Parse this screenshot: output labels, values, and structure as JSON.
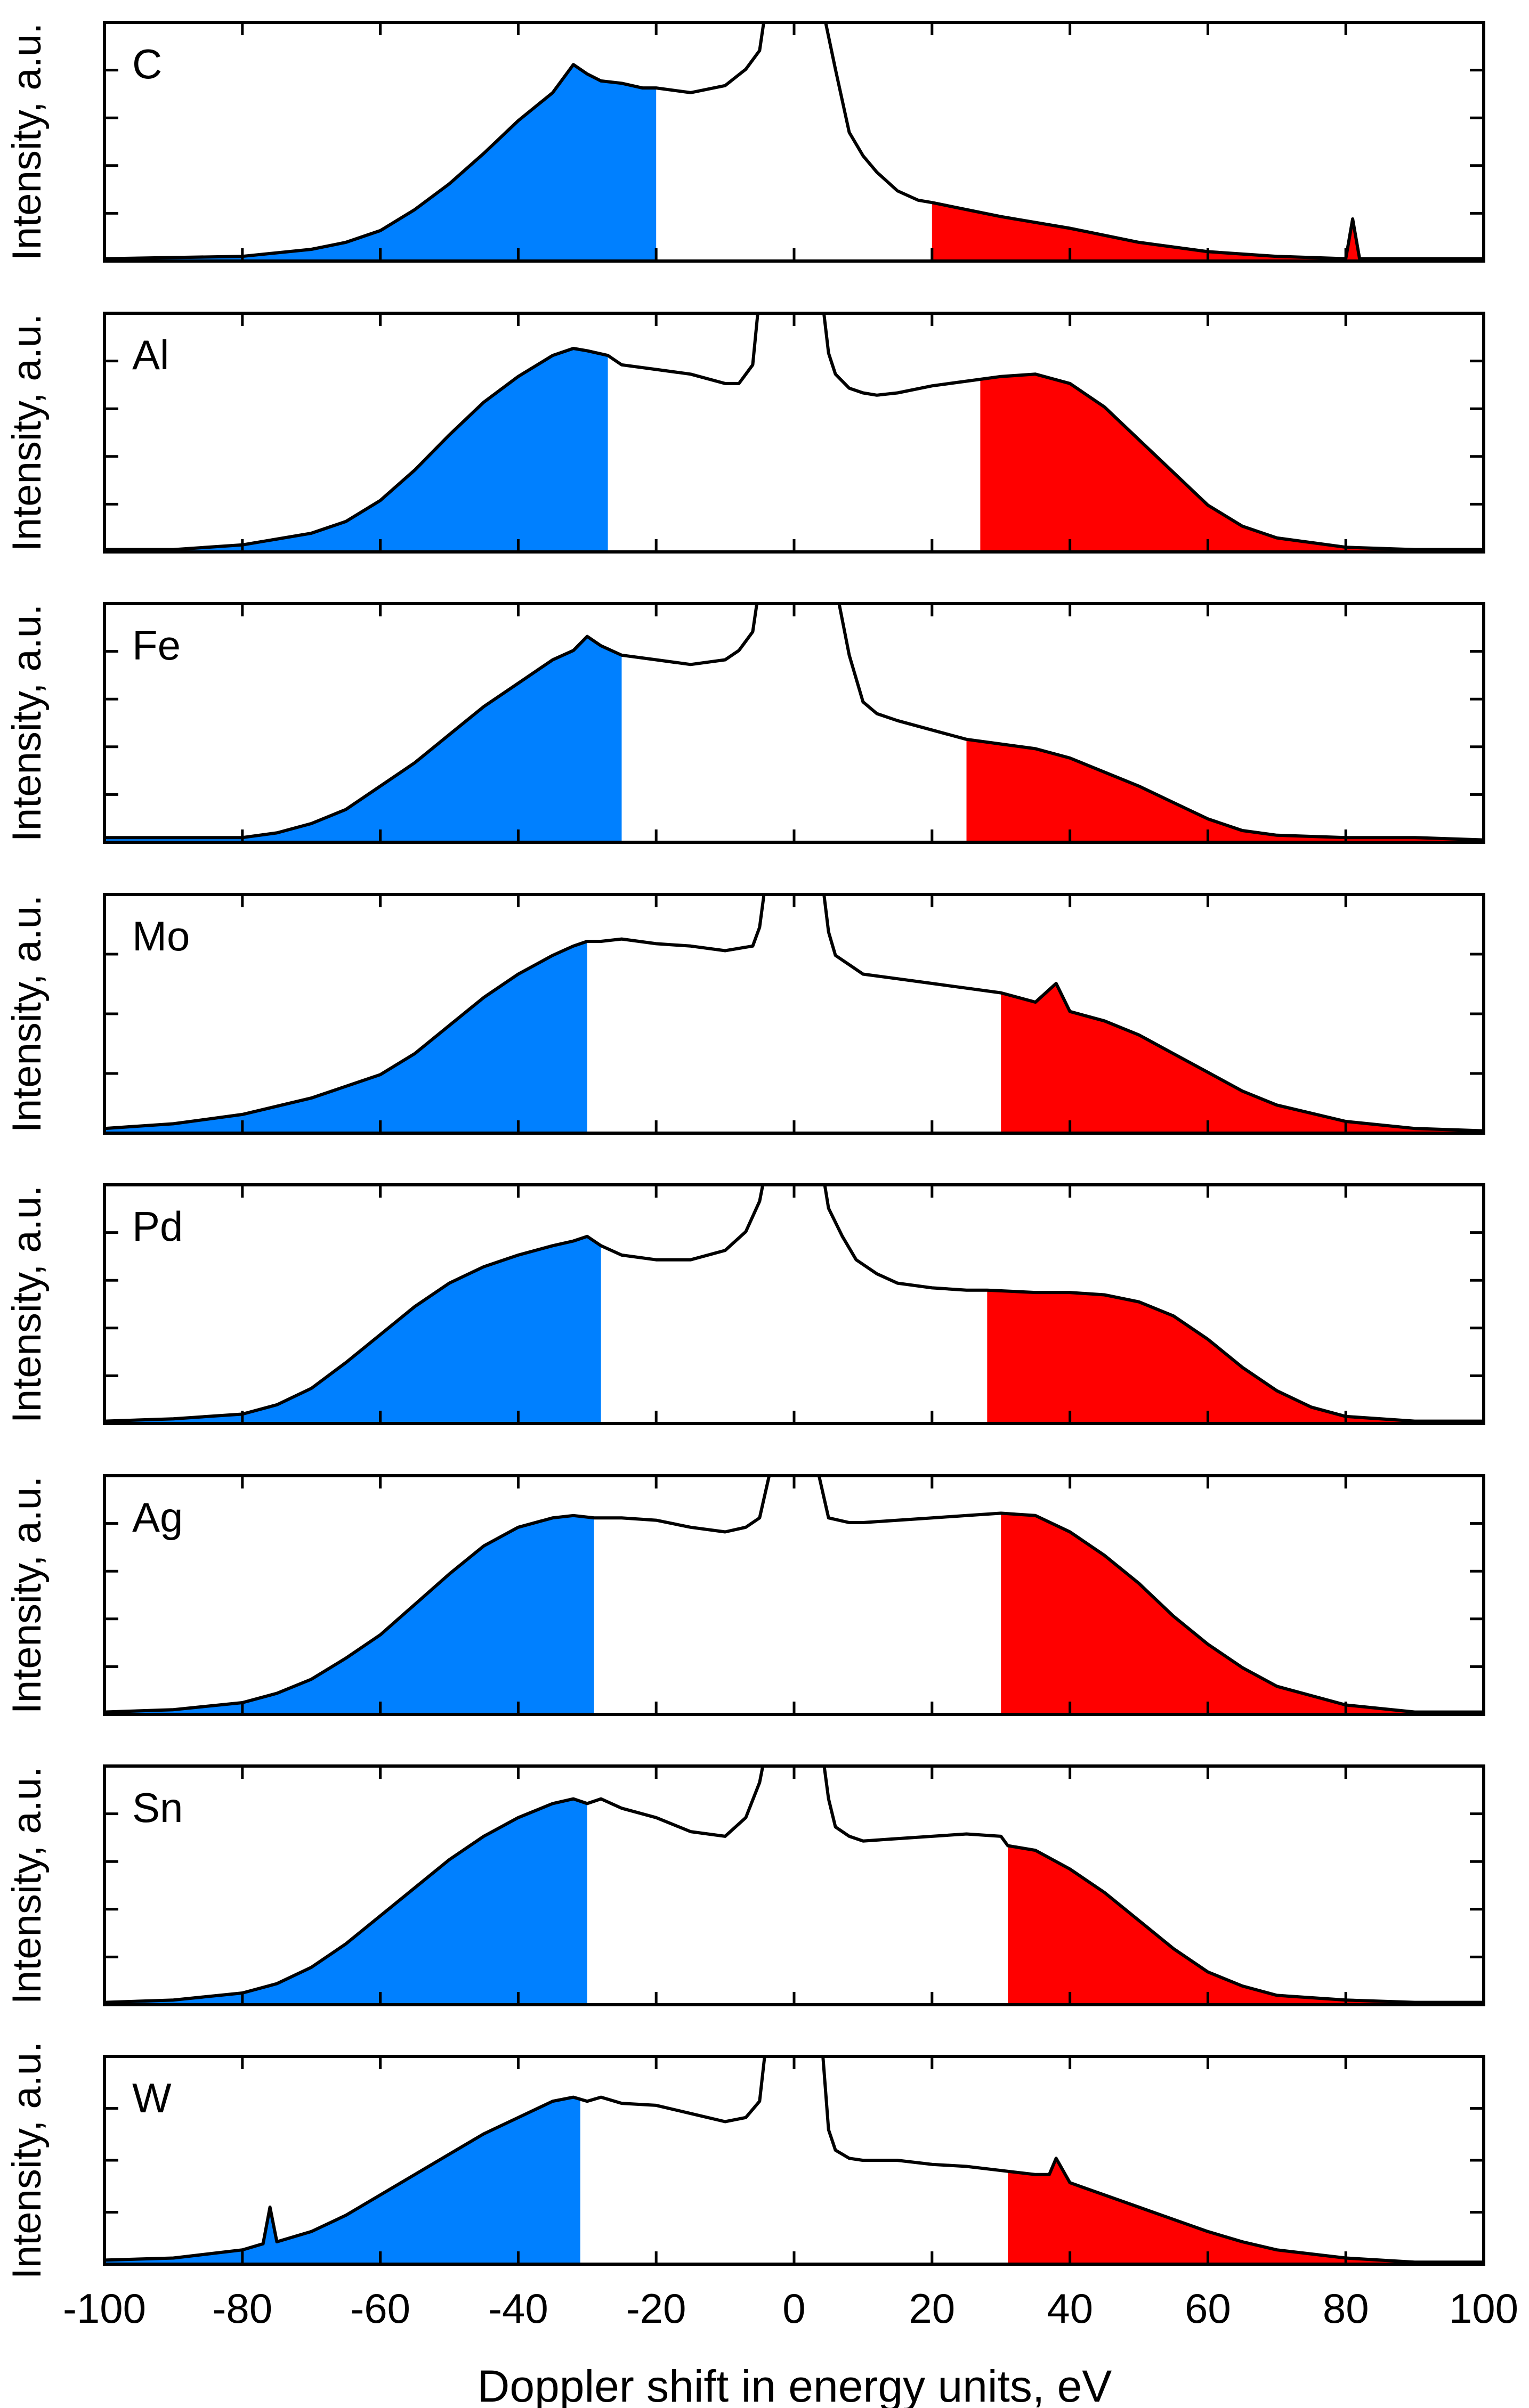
{
  "chart_data": {
    "type": "area",
    "xlabel": "Doppler shift in energy units, eV",
    "ylabel": "Intensity, a.u.",
    "xlim": [
      -100,
      100
    ],
    "xticks": [
      -100,
      -80,
      -60,
      -40,
      -20,
      0,
      20,
      40,
      60,
      80,
      100
    ],
    "xtick_labels": [
      "-100",
      "-80",
      "-60",
      "-40",
      "-20",
      "0",
      "20",
      "40",
      "60",
      "80",
      "100"
    ],
    "colors": {
      "blue_fill": "#0080ff",
      "red_fill": "#ff0000",
      "line": "#000000"
    },
    "panels": [
      {
        "label": "C",
        "blue_cut": -20,
        "red_cut": 20,
        "y_ticks": 4,
        "x": [
          -100,
          -80,
          -70,
          -65,
          -60,
          -55,
          -50,
          -45,
          -40,
          -35,
          -32,
          -30,
          -28,
          -25,
          -22,
          -20,
          -15,
          -10,
          -7,
          -5,
          -4,
          4,
          6,
          8,
          10,
          12,
          15,
          18,
          20,
          25,
          30,
          40,
          50,
          60,
          70,
          80,
          81,
          82,
          90,
          100
        ],
        "y": [
          0.01,
          0.02,
          0.05,
          0.08,
          0.13,
          0.22,
          0.33,
          0.46,
          0.6,
          0.72,
          0.84,
          0.8,
          0.77,
          0.76,
          0.74,
          0.74,
          0.72,
          0.75,
          0.82,
          0.9,
          1.1,
          1.1,
          0.82,
          0.55,
          0.45,
          0.38,
          0.3,
          0.26,
          0.25,
          0.22,
          0.19,
          0.14,
          0.08,
          0.04,
          0.02,
          0.01,
          0.18,
          0.01,
          0.01,
          0.01
        ]
      },
      {
        "label": "Al",
        "blue_cut": -27,
        "red_cut": 27,
        "y_ticks": 4,
        "x": [
          -100,
          -90,
          -80,
          -70,
          -65,
          -60,
          -55,
          -50,
          -45,
          -40,
          -35,
          -32,
          -30,
          -27,
          -25,
          -20,
          -15,
          -10,
          -8,
          -6,
          -5,
          4,
          5,
          6,
          8,
          10,
          12,
          15,
          20,
          25,
          30,
          35,
          40,
          45,
          50,
          55,
          60,
          65,
          70,
          80,
          90,
          100
        ],
        "y": [
          0.01,
          0.01,
          0.03,
          0.08,
          0.13,
          0.22,
          0.35,
          0.5,
          0.64,
          0.75,
          0.84,
          0.87,
          0.86,
          0.84,
          0.8,
          0.78,
          0.76,
          0.72,
          0.72,
          0.8,
          1.1,
          1.1,
          0.85,
          0.76,
          0.7,
          0.68,
          0.67,
          0.68,
          0.71,
          0.73,
          0.75,
          0.76,
          0.72,
          0.62,
          0.48,
          0.34,
          0.2,
          0.11,
          0.06,
          0.02,
          0.01,
          0.01
        ]
      },
      {
        "label": "Fe",
        "blue_cut": -25,
        "red_cut": 25,
        "y_ticks": 4,
        "x": [
          -100,
          -90,
          -80,
          -75,
          -70,
          -65,
          -60,
          -55,
          -50,
          -45,
          -40,
          -35,
          -32,
          -30,
          -28,
          -25,
          -20,
          -15,
          -10,
          -8,
          -6,
          -5,
          6,
          8,
          10,
          12,
          15,
          20,
          25,
          30,
          35,
          40,
          45,
          50,
          55,
          60,
          65,
          70,
          80,
          90,
          100
        ],
        "y": [
          0.02,
          0.02,
          0.02,
          0.04,
          0.08,
          0.14,
          0.24,
          0.34,
          0.46,
          0.58,
          0.68,
          0.78,
          0.82,
          0.88,
          0.84,
          0.8,
          0.78,
          0.76,
          0.78,
          0.82,
          0.9,
          1.1,
          1.1,
          0.8,
          0.6,
          0.55,
          0.52,
          0.48,
          0.44,
          0.42,
          0.4,
          0.36,
          0.3,
          0.24,
          0.17,
          0.1,
          0.05,
          0.03,
          0.02,
          0.02,
          0.01
        ]
      },
      {
        "label": "Mo",
        "blue_cut": -30,
        "red_cut": 30,
        "y_ticks": 3,
        "x": [
          -100,
          -90,
          -80,
          -70,
          -60,
          -55,
          -50,
          -45,
          -40,
          -35,
          -32,
          -30,
          -28,
          -25,
          -20,
          -15,
          -10,
          -6,
          -5,
          -4,
          4,
          5,
          6,
          8,
          10,
          15,
          20,
          25,
          30,
          35,
          38,
          40,
          45,
          50,
          55,
          60,
          65,
          70,
          80,
          90,
          100
        ],
        "y": [
          0.02,
          0.04,
          0.08,
          0.15,
          0.25,
          0.34,
          0.46,
          0.58,
          0.68,
          0.76,
          0.8,
          0.82,
          0.82,
          0.83,
          0.81,
          0.8,
          0.78,
          0.8,
          0.88,
          1.1,
          1.1,
          0.86,
          0.76,
          0.72,
          0.68,
          0.66,
          0.64,
          0.62,
          0.6,
          0.56,
          0.64,
          0.52,
          0.48,
          0.42,
          0.34,
          0.26,
          0.18,
          0.12,
          0.05,
          0.02,
          0.01
        ]
      },
      {
        "label": "Pd",
        "blue_cut": -28,
        "red_cut": 28,
        "y_ticks": 4,
        "x": [
          -100,
          -90,
          -80,
          -75,
          -70,
          -65,
          -60,
          -55,
          -50,
          -45,
          -40,
          -35,
          -32,
          -30,
          -28,
          -25,
          -20,
          -15,
          -10,
          -7,
          -5,
          -4,
          4,
          5,
          7,
          9,
          12,
          15,
          20,
          25,
          28,
          35,
          40,
          45,
          50,
          55,
          60,
          65,
          70,
          75,
          80,
          90,
          100
        ],
        "y": [
          0.01,
          0.02,
          0.04,
          0.08,
          0.15,
          0.26,
          0.38,
          0.5,
          0.6,
          0.67,
          0.72,
          0.76,
          0.78,
          0.8,
          0.76,
          0.72,
          0.7,
          0.7,
          0.74,
          0.82,
          0.95,
          1.1,
          1.1,
          0.92,
          0.8,
          0.7,
          0.64,
          0.6,
          0.58,
          0.57,
          0.57,
          0.56,
          0.56,
          0.55,
          0.52,
          0.46,
          0.36,
          0.24,
          0.14,
          0.07,
          0.03,
          0.01,
          0.01
        ]
      },
      {
        "label": "Ag",
        "blue_cut": -29,
        "red_cut": 30,
        "y_ticks": 4,
        "x": [
          -100,
          -90,
          -80,
          -75,
          -70,
          -65,
          -60,
          -55,
          -50,
          -45,
          -40,
          -35,
          -32,
          -29,
          -25,
          -20,
          -15,
          -10,
          -7,
          -5,
          -3,
          3,
          5,
          8,
          10,
          15,
          20,
          25,
          30,
          35,
          40,
          45,
          50,
          55,
          60,
          65,
          70,
          80,
          90,
          100
        ],
        "y": [
          0.01,
          0.02,
          0.05,
          0.09,
          0.15,
          0.24,
          0.34,
          0.47,
          0.6,
          0.72,
          0.8,
          0.84,
          0.85,
          0.84,
          0.84,
          0.83,
          0.8,
          0.78,
          0.8,
          0.84,
          1.1,
          1.1,
          0.84,
          0.82,
          0.82,
          0.83,
          0.84,
          0.85,
          0.86,
          0.85,
          0.78,
          0.68,
          0.56,
          0.42,
          0.3,
          0.2,
          0.12,
          0.04,
          0.01,
          0.01
        ]
      },
      {
        "label": "Sn",
        "blue_cut": -30,
        "red_cut": 31,
        "y_ticks": 4,
        "x": [
          -100,
          -90,
          -80,
          -75,
          -70,
          -65,
          -60,
          -55,
          -50,
          -45,
          -40,
          -35,
          -32,
          -30,
          -28,
          -25,
          -20,
          -15,
          -10,
          -7,
          -5,
          -4,
          4,
          5,
          6,
          8,
          10,
          15,
          20,
          25,
          30,
          31,
          35,
          40,
          45,
          50,
          55,
          60,
          65,
          70,
          80,
          90,
          100
        ],
        "y": [
          0.01,
          0.02,
          0.05,
          0.09,
          0.16,
          0.26,
          0.38,
          0.5,
          0.62,
          0.72,
          0.8,
          0.86,
          0.88,
          0.86,
          0.88,
          0.84,
          0.8,
          0.74,
          0.72,
          0.8,
          0.95,
          1.1,
          1.1,
          0.88,
          0.76,
          0.72,
          0.7,
          0.71,
          0.72,
          0.73,
          0.72,
          0.68,
          0.66,
          0.58,
          0.48,
          0.36,
          0.24,
          0.14,
          0.08,
          0.04,
          0.02,
          0.01,
          0.01
        ]
      },
      {
        "label": "W",
        "blue_cut": -31,
        "red_cut": 31,
        "y_ticks": 3,
        "x": [
          -100,
          -90,
          -80,
          -77,
          -76,
          -75,
          -70,
          -65,
          -60,
          -55,
          -50,
          -45,
          -40,
          -35,
          -32,
          -30,
          -28,
          -25,
          -20,
          -15,
          -10,
          -7,
          -5,
          -4,
          4,
          5,
          6,
          8,
          10,
          15,
          20,
          25,
          30,
          35,
          37,
          38,
          40,
          45,
          50,
          55,
          60,
          65,
          70,
          80,
          90,
          100
        ],
        "y": [
          0.02,
          0.03,
          0.07,
          0.1,
          0.28,
          0.11,
          0.16,
          0.24,
          0.34,
          0.44,
          0.54,
          0.64,
          0.72,
          0.8,
          0.82,
          0.8,
          0.82,
          0.79,
          0.78,
          0.74,
          0.7,
          0.72,
          0.8,
          1.1,
          1.1,
          0.66,
          0.56,
          0.52,
          0.51,
          0.51,
          0.49,
          0.48,
          0.46,
          0.44,
          0.44,
          0.52,
          0.4,
          0.34,
          0.28,
          0.22,
          0.16,
          0.11,
          0.07,
          0.03,
          0.01,
          0.01
        ]
      }
    ]
  }
}
